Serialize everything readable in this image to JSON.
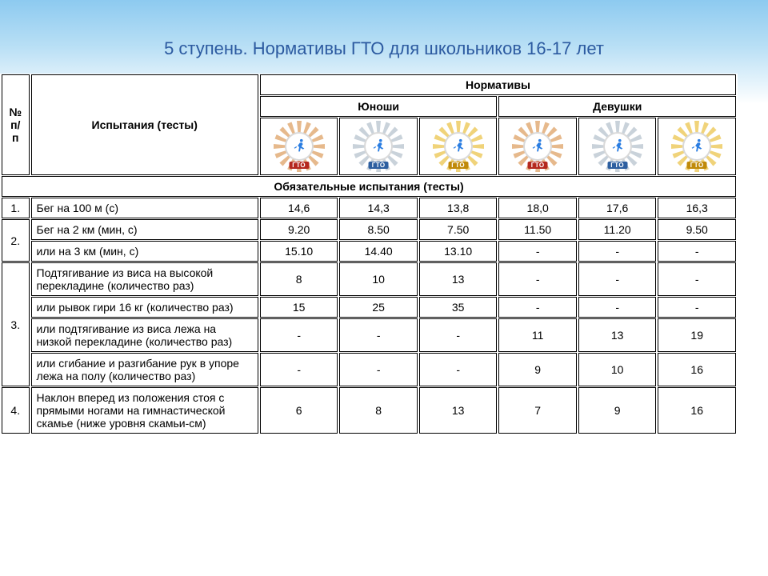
{
  "title": "5 ступень. Нормативы ГТО для школьников 16-17 лет",
  "header": {
    "no": "№ п/п",
    "test": "Испытания (тесты)",
    "norms": "Нормативы",
    "boys": "Юноши",
    "girls": "Девушки"
  },
  "badges": {
    "tag": "ГТО",
    "colors": {
      "bronze": {
        "outer": "#c73a2f",
        "spike": "#e6b98c",
        "tag": "#b5291e"
      },
      "silver": {
        "outer": "#3a78c4",
        "spike": "#c9d2da",
        "tag": "#2d5fa0"
      },
      "gold": {
        "outer": "#d9a518",
        "spike": "#f0d37a",
        "tag": "#c08a0a"
      }
    },
    "order": [
      "bronze",
      "silver",
      "gold",
      "bronze",
      "silver",
      "gold"
    ]
  },
  "section": "Обязательные испытания (тесты)",
  "rows": [
    {
      "no": "1.",
      "test": "Бег на 100 м (с)",
      "vals": [
        "14,6",
        "14,3",
        "13,8",
        "18,0",
        "17,6",
        "16,3"
      ]
    },
    {
      "no": "2.",
      "rowspan": 2,
      "test": "Бег на 2 км  (мин, с)",
      "vals": [
        "9.20",
        "8.50",
        "7.50",
        "11.50",
        "11.20",
        "9.50"
      ]
    },
    {
      "test": "или на 3 км (мин, с)",
      "vals": [
        "15.10",
        "14.40",
        "13.10",
        "-",
        "-",
        "-"
      ]
    },
    {
      "no": "3.",
      "rowspan": 4,
      "test": "Подтягивание из виса на высокой перекладине (количество раз)",
      "vals": [
        "8",
        "10",
        "13",
        "-",
        "-",
        "-"
      ]
    },
    {
      "test": "или рывок гири 16 кг (количество раз)",
      "vals": [
        "15",
        "25",
        "35",
        "-",
        "-",
        "-"
      ]
    },
    {
      "test": "или подтягивание из виса лежа на низкой перекладине (количество раз)",
      "vals": [
        "-",
        "-",
        "-",
        "11",
        "13",
        "19"
      ]
    },
    {
      "test": "или сгибание и разгибание рук в упоре лежа на полу (количество раз)",
      "vals": [
        "-",
        "-",
        "-",
        "9",
        "10",
        "16"
      ]
    },
    {
      "no": "4.",
      "test": "Наклон вперед из положения стоя с прямыми ногами на гимнастической скамье (ниже уровня скамьи-см)",
      "vals": [
        "6",
        "8",
        "13",
        "7",
        "9",
        "16"
      ]
    }
  ],
  "style": {
    "title_color": "#2c5aa0",
    "title_fontsize": 22,
    "body_fontsize": 14,
    "border_color": "#000000",
    "background_gradient": [
      "#8dcaf0",
      "#b8dff5",
      "#ffffff"
    ],
    "col_widths": {
      "no": 34,
      "test": 280,
      "val": 96
    },
    "runner_color": "#2a7de1"
  }
}
